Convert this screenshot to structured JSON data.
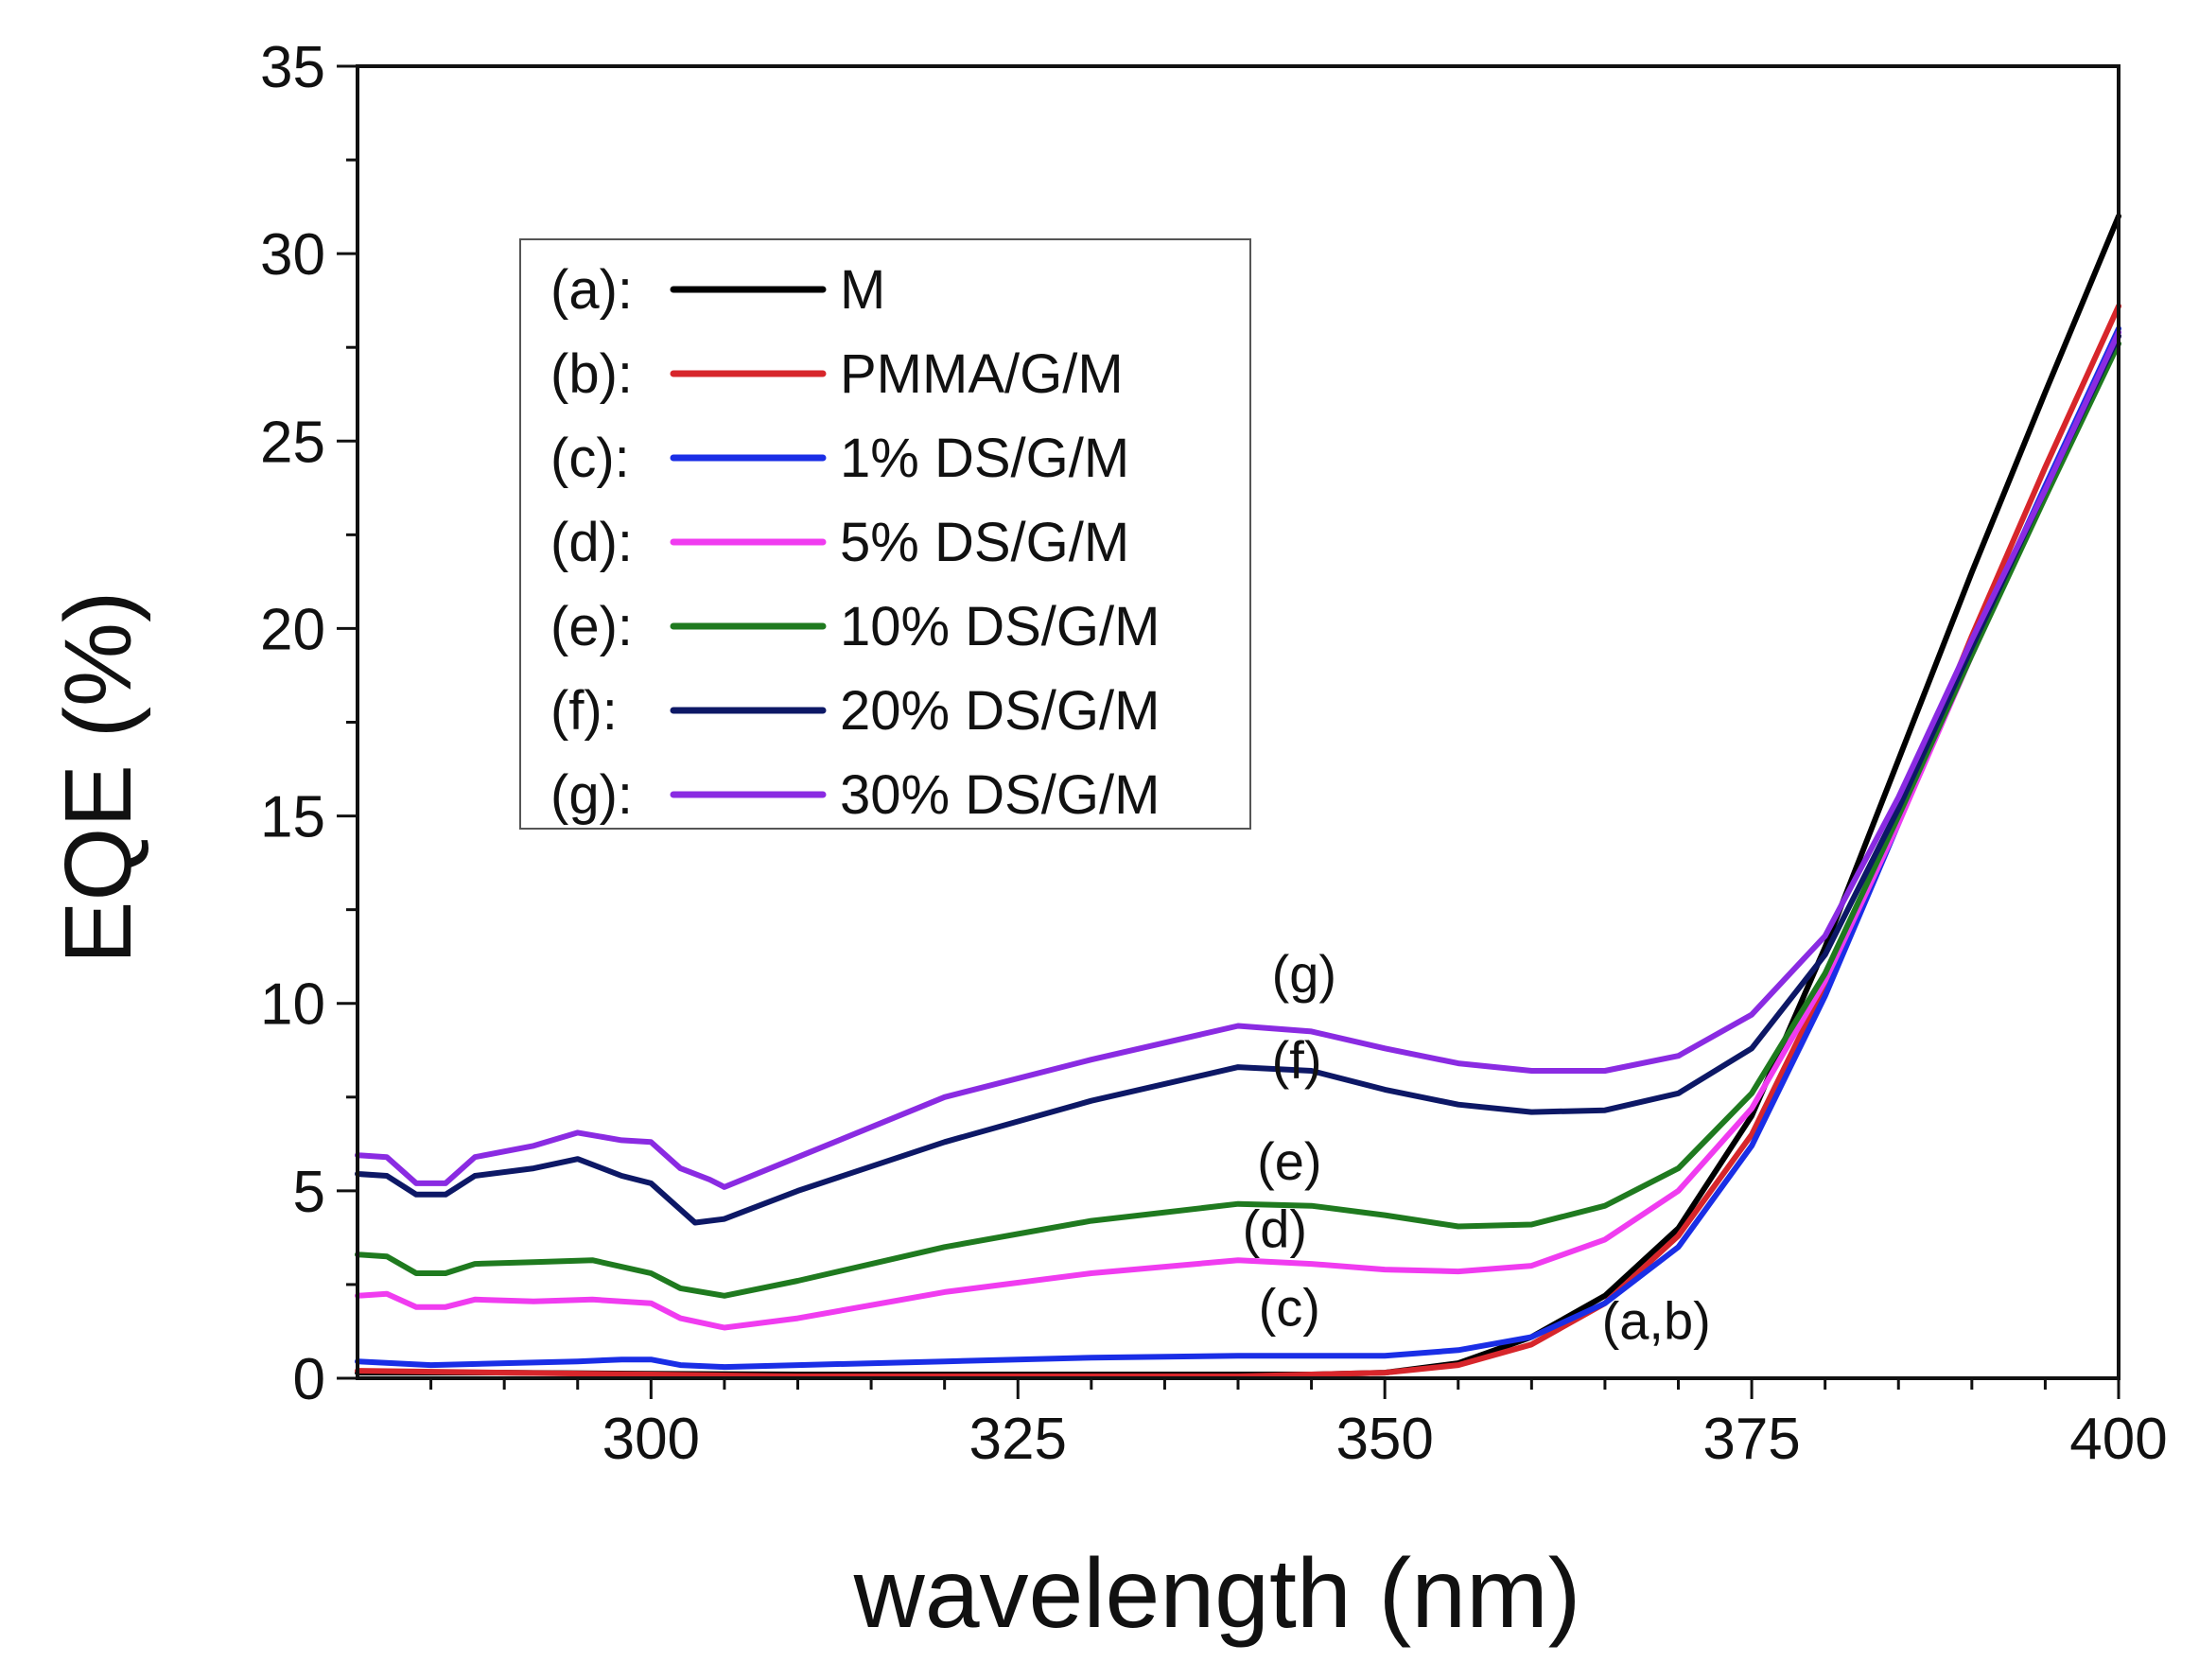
{
  "chart_data": {
    "type": "line",
    "title": "",
    "xlabel": "wavelength (nm)",
    "ylabel": "EQE (%)",
    "xlim": [
      280,
      400
    ],
    "ylim": [
      0,
      35
    ],
    "x_major_ticks": [
      300,
      325,
      350,
      375,
      400
    ],
    "y_major_ticks": [
      0,
      5,
      10,
      15,
      20,
      25,
      30,
      35
    ],
    "x_tick_labels": [
      "300",
      "325",
      "350",
      "375",
      "400"
    ],
    "y_tick_labels": [
      "0",
      "5",
      "10",
      "15",
      "20",
      "25",
      "30",
      "35"
    ],
    "legend_position": "upper-left",
    "series": [
      {
        "key": "(a):",
        "name": "M",
        "color": "#000000",
        "points": [
          [
            280,
            0.15
          ],
          [
            290,
            0.15
          ],
          [
            300,
            0.12
          ],
          [
            310,
            0.1
          ],
          [
            320,
            0.1
          ],
          [
            330,
            0.1
          ],
          [
            340,
            0.1
          ],
          [
            345,
            0.1
          ],
          [
            350,
            0.15
          ],
          [
            355,
            0.4
          ],
          [
            360,
            1.1
          ],
          [
            365,
            2.2
          ],
          [
            370,
            4.0
          ],
          [
            375,
            7.0
          ],
          [
            380,
            11.5
          ],
          [
            385,
            16.5
          ],
          [
            390,
            21.5
          ],
          [
            395,
            26.3
          ],
          [
            400,
            31.0
          ]
        ]
      },
      {
        "key": "(b):",
        "name": "PMMA/G/M",
        "color": "#d7262b",
        "points": [
          [
            280,
            0.2
          ],
          [
            290,
            0.15
          ],
          [
            300,
            0.1
          ],
          [
            310,
            0.05
          ],
          [
            320,
            0.05
          ],
          [
            330,
            0.05
          ],
          [
            340,
            0.05
          ],
          [
            345,
            0.1
          ],
          [
            350,
            0.15
          ],
          [
            355,
            0.35
          ],
          [
            360,
            0.9
          ],
          [
            365,
            2.0
          ],
          [
            370,
            3.8
          ],
          [
            375,
            6.5
          ],
          [
            380,
            10.5
          ],
          [
            385,
            15.0
          ],
          [
            390,
            19.8
          ],
          [
            395,
            24.3
          ],
          [
            400,
            28.6
          ]
        ]
      },
      {
        "key": "(c):",
        "name": "1% DS/G/M",
        "color": "#1a2ee6",
        "points": [
          [
            280,
            0.45
          ],
          [
            285,
            0.35
          ],
          [
            290,
            0.4
          ],
          [
            295,
            0.45
          ],
          [
            298,
            0.5
          ],
          [
            300,
            0.5
          ],
          [
            302,
            0.35
          ],
          [
            305,
            0.3
          ],
          [
            310,
            0.35
          ],
          [
            320,
            0.45
          ],
          [
            330,
            0.55
          ],
          [
            340,
            0.6
          ],
          [
            350,
            0.6
          ],
          [
            355,
            0.75
          ],
          [
            360,
            1.1
          ],
          [
            365,
            2.0
          ],
          [
            370,
            3.5
          ],
          [
            375,
            6.2
          ],
          [
            380,
            10.2
          ],
          [
            385,
            14.8
          ],
          [
            390,
            19.5
          ],
          [
            395,
            23.8
          ],
          [
            400,
            28.0
          ]
        ]
      },
      {
        "key": "(d):",
        "name": "5% DS/G/M",
        "color": "#f03cf0",
        "points": [
          [
            280,
            2.2
          ],
          [
            282,
            2.25
          ],
          [
            284,
            1.9
          ],
          [
            286,
            1.9
          ],
          [
            288,
            2.1
          ],
          [
            292,
            2.05
          ],
          [
            296,
            2.1
          ],
          [
            300,
            2.0
          ],
          [
            302,
            1.6
          ],
          [
            305,
            1.35
          ],
          [
            310,
            1.6
          ],
          [
            320,
            2.3
          ],
          [
            330,
            2.8
          ],
          [
            340,
            3.15
          ],
          [
            345,
            3.05
          ],
          [
            350,
            2.9
          ],
          [
            355,
            2.85
          ],
          [
            360,
            3.0
          ],
          [
            365,
            3.7
          ],
          [
            370,
            5.0
          ],
          [
            375,
            7.2
          ],
          [
            380,
            10.6
          ],
          [
            385,
            14.8
          ],
          [
            390,
            19.3
          ],
          [
            395,
            23.6
          ],
          [
            400,
            27.8
          ]
        ]
      },
      {
        "key": "(e):",
        "name": "10% DS/G/M",
        "color": "#1f7a1f",
        "points": [
          [
            280,
            3.3
          ],
          [
            282,
            3.25
          ],
          [
            284,
            2.8
          ],
          [
            286,
            2.8
          ],
          [
            288,
            3.05
          ],
          [
            292,
            3.1
          ],
          [
            296,
            3.15
          ],
          [
            300,
            2.8
          ],
          [
            302,
            2.4
          ],
          [
            305,
            2.2
          ],
          [
            310,
            2.6
          ],
          [
            320,
            3.5
          ],
          [
            330,
            4.2
          ],
          [
            340,
            4.65
          ],
          [
            345,
            4.6
          ],
          [
            350,
            4.35
          ],
          [
            355,
            4.05
          ],
          [
            360,
            4.1
          ],
          [
            365,
            4.6
          ],
          [
            370,
            5.6
          ],
          [
            375,
            7.6
          ],
          [
            380,
            10.8
          ],
          [
            385,
            15.0
          ],
          [
            390,
            19.3
          ],
          [
            395,
            23.5
          ],
          [
            400,
            27.6
          ]
        ]
      },
      {
        "key": "(f):",
        "name": "20% DS/G/M",
        "color": "#0d1866",
        "points": [
          [
            280,
            5.45
          ],
          [
            282,
            5.4
          ],
          [
            284,
            4.9
          ],
          [
            286,
            4.9
          ],
          [
            288,
            5.4
          ],
          [
            292,
            5.6
          ],
          [
            295,
            5.85
          ],
          [
            298,
            5.4
          ],
          [
            300,
            5.2
          ],
          [
            302,
            4.5
          ],
          [
            303,
            4.15
          ],
          [
            305,
            4.25
          ],
          [
            310,
            5.0
          ],
          [
            320,
            6.3
          ],
          [
            330,
            7.4
          ],
          [
            340,
            8.3
          ],
          [
            345,
            8.2
          ],
          [
            350,
            7.7
          ],
          [
            355,
            7.3
          ],
          [
            360,
            7.1
          ],
          [
            365,
            7.15
          ],
          [
            370,
            7.6
          ],
          [
            375,
            8.8
          ],
          [
            380,
            11.3
          ],
          [
            385,
            15.2
          ],
          [
            390,
            19.5
          ],
          [
            395,
            23.7
          ],
          [
            400,
            27.8
          ]
        ]
      },
      {
        "key": "(g):",
        "name": "30% DS/G/M",
        "color": "#8a2be2",
        "points": [
          [
            280,
            5.95
          ],
          [
            282,
            5.9
          ],
          [
            284,
            5.2
          ],
          [
            286,
            5.2
          ],
          [
            288,
            5.9
          ],
          [
            292,
            6.2
          ],
          [
            295,
            6.55
          ],
          [
            298,
            6.35
          ],
          [
            300,
            6.3
          ],
          [
            302,
            5.6
          ],
          [
            304,
            5.3
          ],
          [
            305,
            5.1
          ],
          [
            310,
            5.9
          ],
          [
            320,
            7.5
          ],
          [
            330,
            8.5
          ],
          [
            340,
            9.4
          ],
          [
            345,
            9.25
          ],
          [
            350,
            8.8
          ],
          [
            355,
            8.4
          ],
          [
            360,
            8.2
          ],
          [
            365,
            8.2
          ],
          [
            370,
            8.6
          ],
          [
            375,
            9.7
          ],
          [
            380,
            11.8
          ],
          [
            385,
            15.5
          ],
          [
            390,
            19.7
          ],
          [
            395,
            23.7
          ],
          [
            400,
            27.9
          ]
        ]
      }
    ],
    "annotations": [
      {
        "text": "(g)",
        "x": 344.5,
        "y": 10.3
      },
      {
        "text": "(f)",
        "x": 344,
        "y": 8.0
      },
      {
        "text": "(e)",
        "x": 343.5,
        "y": 5.3
      },
      {
        "text": "(d)",
        "x": 342.5,
        "y": 3.5
      },
      {
        "text": "(c)",
        "x": 343.5,
        "y": 1.4
      },
      {
        "text": "(a,b)",
        "x": 368.5,
        "y": 1.05
      }
    ]
  }
}
